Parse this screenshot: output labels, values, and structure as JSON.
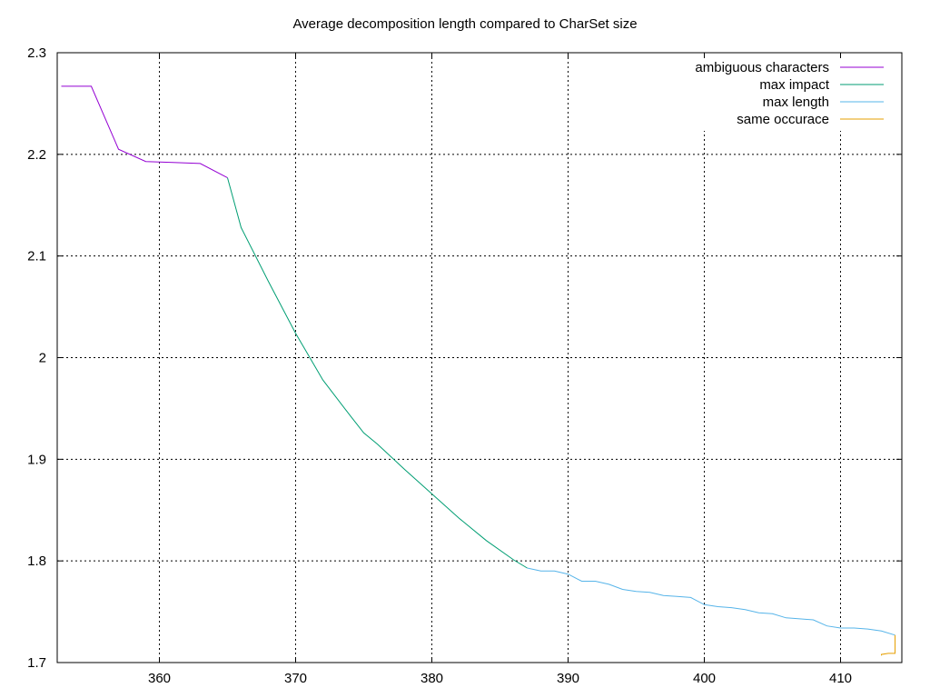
{
  "chart_data": {
    "type": "line",
    "title": "Average decomposition length compared to CharSet size",
    "xlabel": "",
    "ylabel": "",
    "xlim": [
      352.5,
      414.5
    ],
    "ylim": [
      1.7,
      2.3
    ],
    "xticks": [
      360,
      370,
      380,
      390,
      400,
      410
    ],
    "yticks": [
      1.7,
      1.8,
      1.9,
      2,
      2.1,
      2.2,
      2.3
    ],
    "xtick_labels": [
      "360",
      "370",
      "380",
      "390",
      "400",
      "410"
    ],
    "ytick_labels": [
      "1.7",
      "1.8",
      "1.9",
      "2",
      "2.1",
      "2.2",
      "2.3"
    ],
    "grid": true,
    "legend_position": "top-right",
    "series": [
      {
        "name": "ambiguous characters",
        "color": "#9400d3",
        "x": [
          352.8,
          355,
          357,
          359,
          361,
          363,
          365
        ],
        "y": [
          2.267,
          2.267,
          2.205,
          2.193,
          2.192,
          2.191,
          2.177
        ]
      },
      {
        "name": "max impact",
        "color": "#009e73",
        "x": [
          365,
          366,
          368,
          370,
          372,
          374,
          375,
          376,
          378,
          380,
          382,
          384,
          386,
          387
        ],
        "y": [
          2.177,
          2.128,
          2.075,
          2.024,
          1.978,
          1.943,
          1.926,
          1.915,
          1.89,
          1.866,
          1.842,
          1.82,
          1.801,
          1.793
        ]
      },
      {
        "name": "max length",
        "color": "#56b4e9",
        "x": [
          387,
          388,
          389,
          390,
          391,
          392,
          393,
          394,
          395,
          396,
          397,
          398,
          399,
          400,
          401,
          402,
          403,
          404,
          405,
          406,
          407,
          408,
          409,
          410,
          411,
          412,
          413,
          414
        ],
        "y": [
          1.793,
          1.79,
          1.79,
          1.787,
          1.78,
          1.78,
          1.777,
          1.772,
          1.77,
          1.769,
          1.766,
          1.765,
          1.764,
          1.757,
          1.755,
          1.754,
          1.752,
          1.749,
          1.748,
          1.744,
          1.743,
          1.742,
          1.736,
          1.734,
          1.734,
          1.733,
          1.731,
          1.727
        ]
      },
      {
        "name": "same occurace",
        "color": "#e69f00",
        "x": [
          413,
          413,
          413.5,
          414,
          414,
          414
        ],
        "y": [
          1.707,
          1.708,
          1.709,
          1.709,
          1.716,
          1.727
        ]
      }
    ]
  }
}
